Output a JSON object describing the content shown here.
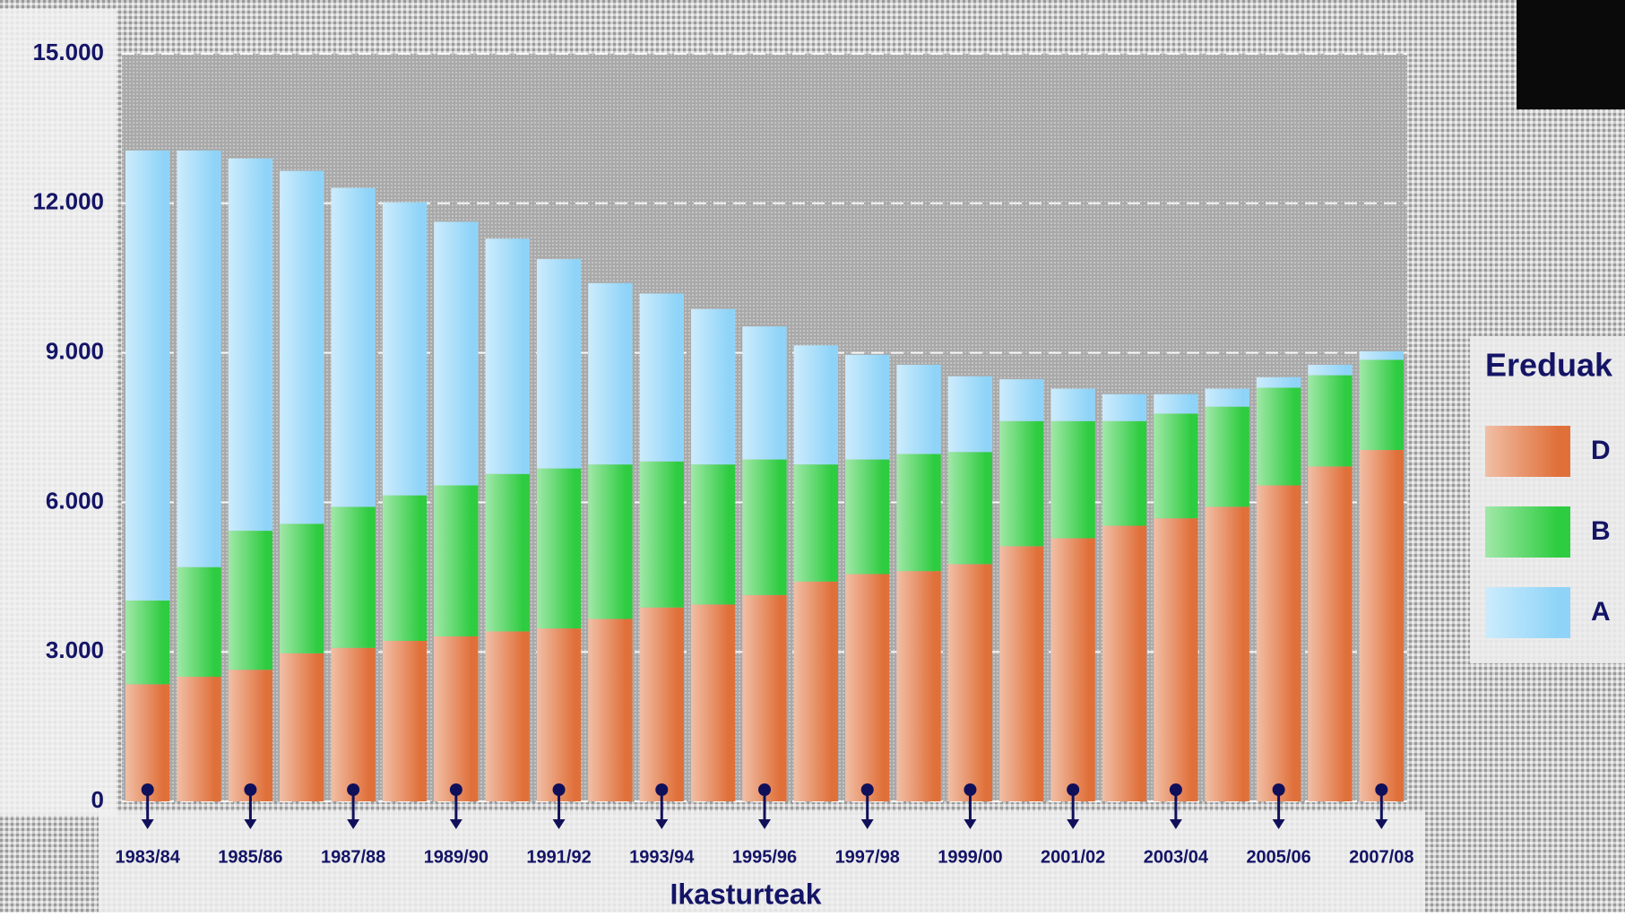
{
  "chart_data": {
    "type": "stacked_bar",
    "x_label": "Ikasturteak",
    "categories": [
      "1983/84",
      null,
      "1985/86",
      null,
      "1987/88",
      null,
      "1989/90",
      null,
      "1991/92",
      null,
      "1993/94",
      null,
      "1995/96",
      null,
      "1997/98",
      null,
      "1999/00",
      null,
      "2001/02",
      null,
      "2003/04",
      null,
      "2005/06",
      null,
      "2007/08"
    ],
    "series": [
      {
        "name": "D",
        "color": "#e0703a",
        "values": [
          2350,
          2500,
          2640,
          2970,
          3080,
          3220,
          3310,
          3410,
          3470,
          3660,
          3890,
          3950,
          4140,
          4410,
          4560,
          4620,
          4760,
          5120,
          5280,
          5530,
          5680,
          5910,
          6340,
          6720,
          7050
        ]
      },
      {
        "name": "B",
        "color": "#2ecc40",
        "values": [
          1680,
          2200,
          2790,
          2600,
          2830,
          2920,
          3030,
          3160,
          3210,
          3100,
          2930,
          2810,
          2720,
          2350,
          2300,
          2350,
          2250,
          2510,
          2350,
          2100,
          2100,
          2010,
          1960,
          1830,
          1810
        ]
      },
      {
        "name": "A",
        "color": "#8fd4f8",
        "values": [
          9030,
          8360,
          7470,
          7080,
          6400,
          5880,
          5290,
          4720,
          4200,
          3640,
          3370,
          3120,
          2670,
          2390,
          2100,
          1790,
          1520,
          840,
          650,
          540,
          390,
          360,
          210,
          210,
          170
        ]
      }
    ],
    "legend_title": "Ereduak",
    "ylim": [
      0,
      15000
    ],
    "yticks": [
      {
        "value": 0,
        "label": "0"
      },
      {
        "value": 3000,
        "label": "3.000"
      },
      {
        "value": 6000,
        "label": "6.000"
      },
      {
        "value": 9000,
        "label": "9.000"
      },
      {
        "value": 12000,
        "label": "12.000"
      },
      {
        "value": 15000,
        "label": "15.000"
      }
    ],
    "grid": true
  }
}
